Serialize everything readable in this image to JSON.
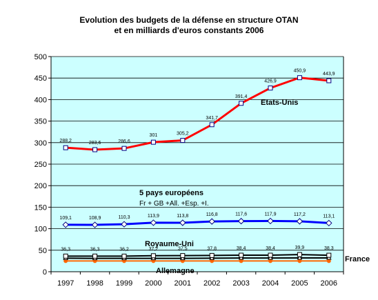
{
  "chart_data": {
    "type": "line",
    "title_line1": "Evolution des budgets de la défense en structure OTAN",
    "title_line2": "et en milliards d'euros constants 2006",
    "xlabel": "",
    "ylabel": "",
    "categories": [
      "1997",
      "1998",
      "1999",
      "2000",
      "2001",
      "2002",
      "2003",
      "2004",
      "2005",
      "2006"
    ],
    "ylim": [
      0,
      500
    ],
    "yticks": [
      "0",
      "50",
      "100",
      "150",
      "200",
      "250",
      "300",
      "350",
      "400",
      "450",
      "500"
    ],
    "grid": true,
    "plot_background": "#ccffff",
    "series": [
      {
        "name": "Etats-Unis",
        "color": "#ff0000",
        "marker": "square",
        "values": [
          288.2,
          283.6,
          286.6,
          301,
          305.2,
          341.7,
          391.4,
          426.9,
          450.9,
          443.9
        ],
        "labels": [
          "288,2",
          "283,6",
          "286,6",
          "301",
          "305,2",
          "341,7",
          "391,4",
          "426,9",
          "450,9",
          "443,9"
        ]
      },
      {
        "name": "5 pays européens",
        "color": "#0000ff",
        "marker": "diamond",
        "values": [
          109.1,
          108.9,
          110.3,
          113.9,
          113.8,
          116.8,
          117.6,
          117.9,
          117.2,
          113.1
        ],
        "labels": [
          "109,1",
          "108,9",
          "110,3",
          "113,9",
          "113,8",
          "116,8",
          "117,6",
          "117,9",
          "117,2",
          "113,1"
        ]
      },
      {
        "name": "Royaume-Uni",
        "color": "#000000",
        "marker": "square",
        "values": [
          36.3,
          36.3,
          36.2,
          37.2,
          37.5,
          37.8,
          38.4,
          38.4,
          39.9,
          38.3
        ],
        "labels": [
          "36,3",
          "36,3",
          "36,2",
          "37,2",
          "37,5",
          "37,8",
          "38,4",
          "38,4",
          "39,9",
          "38,3"
        ]
      },
      {
        "name": "France",
        "color": "#000000",
        "marker": "triangle",
        "values": [
          31.5,
          31.0,
          31.0,
          31.0,
          31.0,
          31.5,
          31.8,
          31.8,
          32.0,
          32.0
        ]
      },
      {
        "name": "Allemagne",
        "color": "#ff6600",
        "marker": "circle",
        "values": [
          25.0,
          25.0,
          25.0,
          25.0,
          25.0,
          25.0,
          25.0,
          25.0,
          25.0,
          25.0
        ]
      }
    ],
    "annotations": {
      "etats_unis": "Etats-Unis",
      "europe": "5 pays européens",
      "europe_sub": "Fr + GB +All. +Esp. +I.",
      "royaume_uni": "Royaume-Uni",
      "france": "France",
      "allemagne": "Allemagne"
    }
  }
}
